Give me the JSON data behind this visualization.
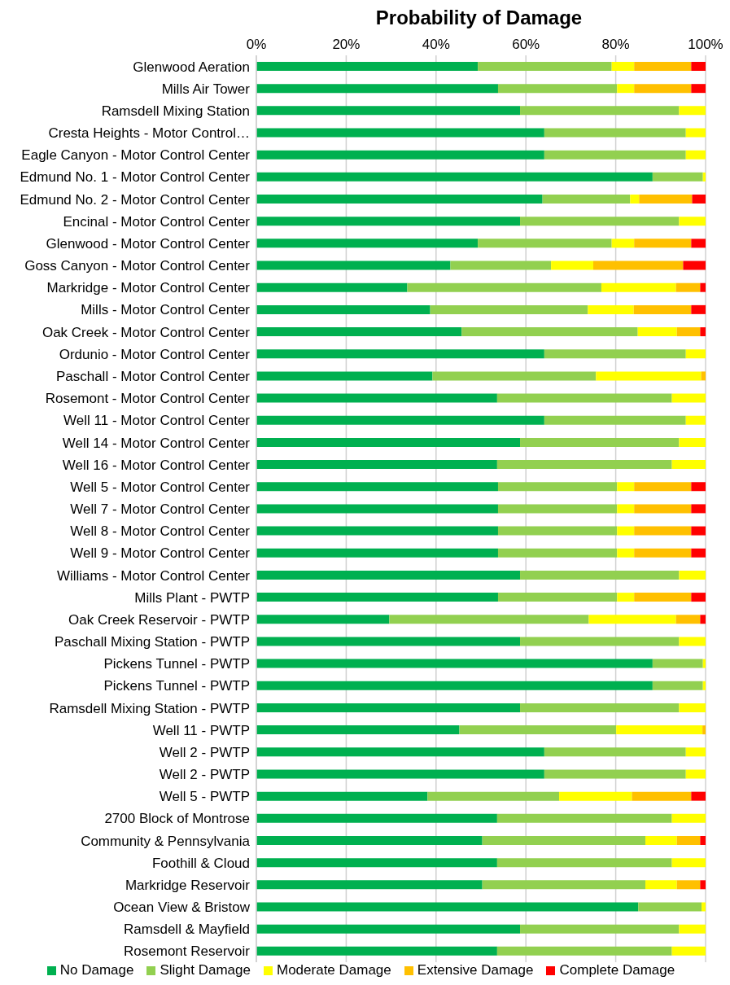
{
  "chart_data": {
    "type": "bar",
    "orientation": "horizontal",
    "stacked": true,
    "title": "Probability of Damage",
    "categories": [
      "Glenwood Aeration",
      "Mills Air Tower",
      "Ramsdell Mixing Station",
      "Cresta Heights - Motor Control…",
      "Eagle Canyon - Motor Control Center",
      "Edmund No. 1 - Motor Control Center",
      "Edmund No. 2 - Motor Control Center",
      "Encinal - Motor Control Center",
      "Glenwood - Motor Control Center",
      "Goss Canyon - Motor Control Center",
      "Markridge - Motor Control Center",
      "Mills - Motor Control Center",
      "Oak Creek - Motor Control Center",
      "Ordunio - Motor Control Center",
      "Paschall - Motor Control Center",
      "Rosemont - Motor Control Center",
      "Well 11 - Motor Control Center",
      "Well 14 - Motor Control Center",
      "Well 16 - Motor Control Center",
      "Well 5 - Motor Control Center",
      "Well 7 - Motor Control Center",
      "Well 8 - Motor Control Center",
      "Well 9 - Motor Control Center",
      "Williams - Motor Control Center",
      "Mills Plant - PWTP",
      "Oak Creek Reservoir - PWTP",
      "Paschall Mixing Station - PWTP",
      "Pickens Tunnel - PWTP",
      "Pickens Tunnel - PWTP",
      "Ramsdell Mixing Station - PWTP",
      "Well 11 - PWTP",
      "Well 2 - PWTP",
      "Well 2 - PWTP",
      "Well 5 - PWTP",
      "2700 Block of Montrose",
      "Community & Pennsylvania",
      "Foothill & Cloud",
      "Markridge Reservoir",
      "Ocean View & Bristow",
      "Ramsdell & Mayfield",
      "Rosemont Reservoir"
    ],
    "series": [
      {
        "name": "No Damage",
        "color": "#00b050",
        "values": [
          49.3,
          53.8,
          58.7,
          64.1,
          64.1,
          88.2,
          63.7,
          58.7,
          49.3,
          43.2,
          33.6,
          38.7,
          45.7,
          64.1,
          39.2,
          53.6,
          64.1,
          58.7,
          53.6,
          53.8,
          53.8,
          53.8,
          53.8,
          58.7,
          53.8,
          29.6,
          58.7,
          88.2,
          88.2,
          58.7,
          45.2,
          64.1,
          64.1,
          38.1,
          53.6,
          50.3,
          53.6,
          50.3,
          85.0,
          58.7,
          53.6
        ]
      },
      {
        "name": "Slight Damage",
        "color": "#92d050",
        "values": [
          29.8,
          26.5,
          35.4,
          31.5,
          31.5,
          11.2,
          19.5,
          35.4,
          29.8,
          22.4,
          43.2,
          35.1,
          39.2,
          31.5,
          36.4,
          38.9,
          31.5,
          35.4,
          38.9,
          26.5,
          26.5,
          26.5,
          26.5,
          35.4,
          26.5,
          44.4,
          35.4,
          11.2,
          11.2,
          35.4,
          34.9,
          31.5,
          31.5,
          29.3,
          38.9,
          36.3,
          38.9,
          36.3,
          14.1,
          35.4,
          38.9
        ]
      },
      {
        "name": "Moderate Damage",
        "color": "#ffff00",
        "values": [
          5.0,
          3.8,
          5.9,
          4.4,
          4.4,
          0.6,
          2.0,
          5.9,
          5.0,
          9.4,
          16.6,
          10.2,
          8.7,
          4.4,
          23.4,
          7.5,
          4.4,
          5.9,
          7.5,
          3.8,
          3.8,
          3.8,
          3.8,
          5.9,
          3.8,
          19.4,
          5.9,
          0.6,
          0.6,
          5.9,
          19.2,
          4.4,
          4.4,
          16.2,
          7.5,
          7.0,
          7.5,
          7.0,
          0.9,
          5.9,
          7.5
        ]
      },
      {
        "name": "Extensive Damage",
        "color": "#ffc000",
        "values": [
          12.7,
          12.7,
          0,
          0,
          0,
          0,
          11.8,
          0,
          12.7,
          20.0,
          5.4,
          12.8,
          5.2,
          0,
          1.0,
          0,
          0,
          0,
          0,
          12.7,
          12.7,
          12.7,
          12.7,
          0,
          12.7,
          5.4,
          0,
          0,
          0,
          0,
          0.7,
          0,
          0,
          13.2,
          0,
          5.2,
          0,
          5.2,
          0,
          0,
          0
        ]
      },
      {
        "name": "Complete Damage",
        "color": "#ff0000",
        "values": [
          3.2,
          3.2,
          0,
          0,
          0,
          0,
          3.0,
          0,
          3.2,
          5.0,
          1.2,
          3.2,
          1.2,
          0,
          0,
          0,
          0,
          0,
          0,
          3.2,
          3.2,
          3.2,
          3.2,
          0,
          3.2,
          1.2,
          0,
          0,
          0,
          0,
          0,
          0,
          0,
          3.2,
          0,
          1.2,
          0,
          1.2,
          0,
          0,
          0
        ]
      }
    ],
    "xlim": [
      0,
      100
    ],
    "xticks": [
      {
        "value": 0,
        "label": "0%"
      },
      {
        "value": 20,
        "label": "20%"
      },
      {
        "value": 40,
        "label": "40%"
      },
      {
        "value": 60,
        "label": "60%"
      },
      {
        "value": 80,
        "label": "80%"
      },
      {
        "value": 100,
        "label": "100%"
      }
    ],
    "grid": "x",
    "legend": "bottom"
  }
}
